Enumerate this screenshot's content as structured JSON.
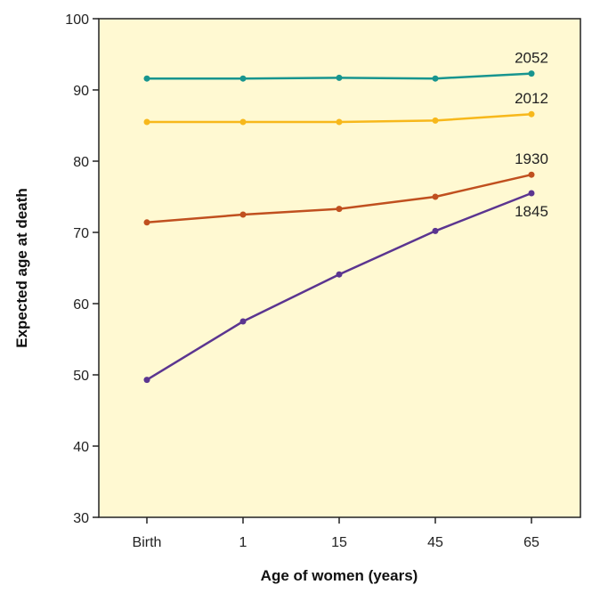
{
  "chart_data": {
    "type": "line",
    "title": "",
    "xlabel": "Age of women (years)",
    "ylabel": "Expected age at death",
    "categories": [
      "Birth",
      "1",
      "15",
      "45",
      "65"
    ],
    "ylim": [
      30,
      100
    ],
    "yticks": [
      30,
      40,
      50,
      60,
      70,
      80,
      90,
      100
    ],
    "grid": false,
    "legend": "none",
    "plot_background": "#fff9d2",
    "series": [
      {
        "name": "2052",
        "color": "#17958f",
        "values": [
          91.6,
          91.6,
          91.7,
          91.6,
          92.3
        ]
      },
      {
        "name": "2012",
        "color": "#f7b81b",
        "values": [
          85.5,
          85.5,
          85.5,
          85.7,
          86.6
        ]
      },
      {
        "name": "1930",
        "color": "#c0501f",
        "values": [
          71.4,
          72.5,
          73.3,
          75.0,
          78.1
        ]
      },
      {
        "name": "1845",
        "color": "#5b3590",
        "values": [
          49.3,
          57.5,
          64.1,
          70.2,
          75.5
        ]
      }
    ]
  }
}
